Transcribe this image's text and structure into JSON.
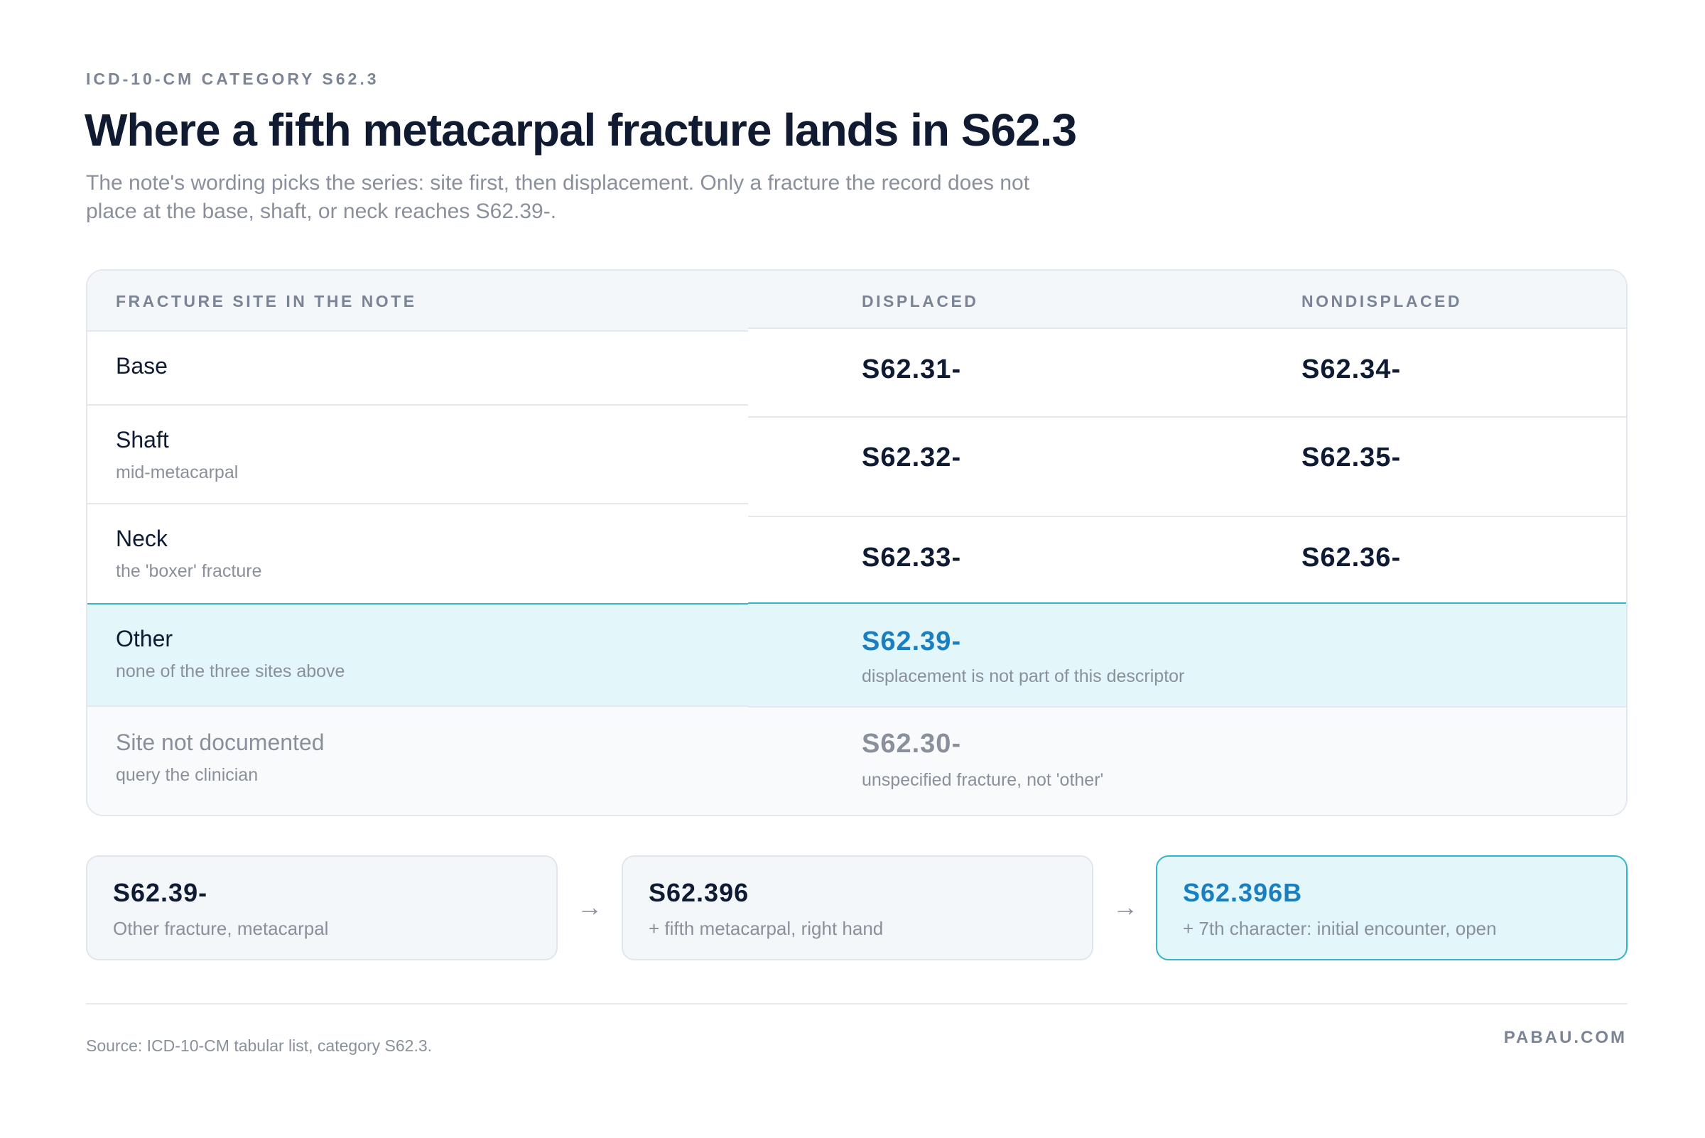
{
  "eyebrow": "ICD-10-CM CATEGORY S62.3",
  "title": "Where a fifth metacarpal fracture lands in S62.3",
  "subtitle": "The note's wording picks the series: site first, then displacement. Only a fracture the record does not place at the base, shaft, or neck reaches S62.39-.",
  "table": {
    "headers": {
      "site": "FRACTURE SITE IN THE NOTE",
      "displaced": "DISPLACED",
      "nondisplaced": "NONDISPLACED"
    },
    "rows": [
      {
        "site": "Base",
        "note": "",
        "displaced": "S62.31-",
        "nondisplaced": "S62.34-"
      },
      {
        "site": "Shaft",
        "note": "mid-metacarpal",
        "displaced": "S62.32-",
        "nondisplaced": "S62.35-"
      },
      {
        "site": "Neck",
        "note": "the 'boxer' fracture",
        "displaced": "S62.33-",
        "nondisplaced": "S62.36-"
      },
      {
        "site": "Other",
        "note": "none of the three sites above",
        "code": "S62.39-",
        "code_note": "displacement is not part of this descriptor"
      },
      {
        "site": "Site not documented",
        "note": "query the clinician",
        "code": "S62.30-",
        "code_note": "unspecified fracture, not 'other'"
      }
    ]
  },
  "steps": [
    {
      "code": "S62.39-",
      "desc": "Other fracture, metacarpal"
    },
    {
      "code": "S62.396",
      "desc": "+ fifth metacarpal, right hand"
    },
    {
      "code": "S62.396B",
      "desc": "+ 7th character: initial encounter, open"
    }
  ],
  "arrow_glyph": "→",
  "source": "Source: ICD-10-CM tabular list, category S62.3.",
  "brand": "PABAU.COM",
  "colors": {
    "highlight_bg": "#e3f6fa",
    "highlight_border": "#35b4c6",
    "code_blue": "#1a7fc0",
    "text_dark": "#0f1b33",
    "text_muted": "#8a909b"
  }
}
